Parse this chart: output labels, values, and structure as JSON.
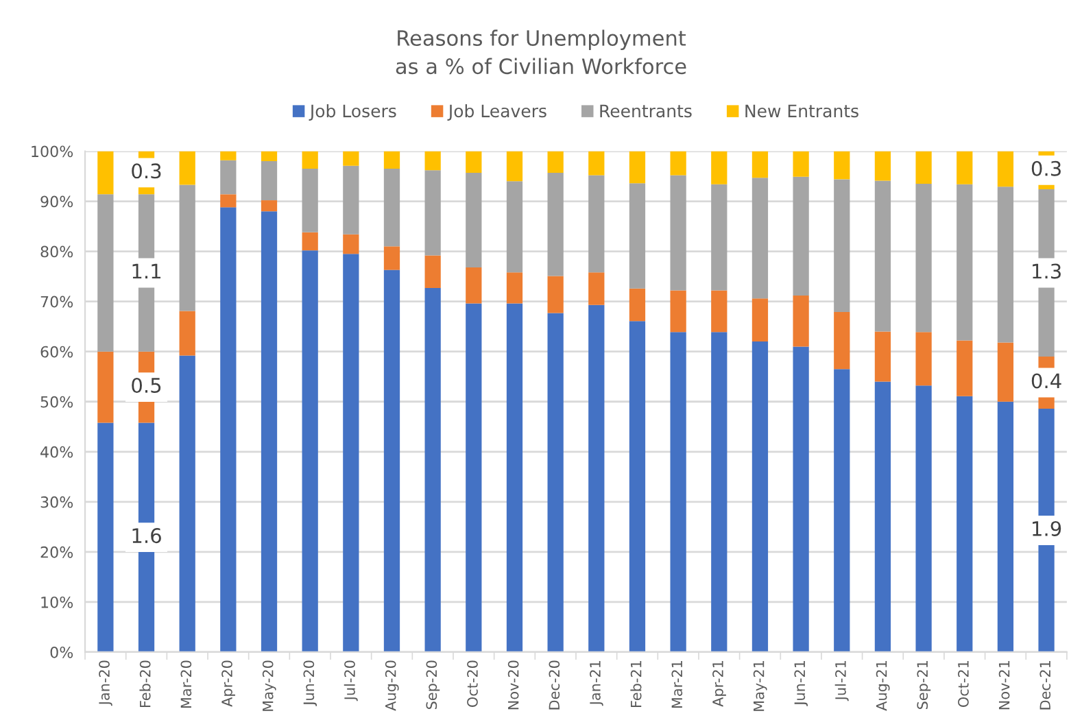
{
  "chart_data": {
    "type": "bar",
    "title": "Reasons for Unemployment\nas a % of Civilian Workforce",
    "stacked": true,
    "categories": [
      "Jan-20",
      "Feb-20",
      "Mar-20",
      "Apr-20",
      "May-20",
      "Jun-20",
      "Jul-20",
      "Aug-20",
      "Sep-20",
      "Oct-20",
      "Nov-20",
      "Dec-20",
      "Jan-21",
      "Feb-21",
      "Mar-21",
      "Apr-21",
      "May-21",
      "Jun-21",
      "Jul-21",
      "Aug-21",
      "Sep-21",
      "Oct-21",
      "Nov-21",
      "Dec-21"
    ],
    "series": [
      {
        "name": "Job Losers",
        "color": "#4472c4",
        "values": [
          45.8,
          45.8,
          59.2,
          88.8,
          88.0,
          80.2,
          79.5,
          76.3,
          72.7,
          69.6,
          69.6,
          67.7,
          69.3,
          66.1,
          63.9,
          63.9,
          62.0,
          61.0,
          56.5,
          54.0,
          53.2,
          51.1,
          50.0,
          48.6
        ]
      },
      {
        "name": "Job Leavers",
        "color": "#ed7d31",
        "values": [
          14.2,
          14.2,
          8.9,
          2.6,
          2.2,
          3.6,
          3.9,
          4.7,
          6.5,
          7.2,
          6.2,
          7.4,
          6.5,
          6.5,
          8.3,
          8.3,
          8.6,
          10.2,
          11.4,
          10.0,
          10.7,
          11.1,
          11.8,
          10.4
        ]
      },
      {
        "name": "Reentrants",
        "color": "#a5a5a5",
        "values": [
          31.4,
          31.4,
          25.2,
          6.8,
          7.8,
          12.7,
          13.7,
          15.5,
          17.0,
          18.9,
          18.2,
          20.6,
          19.4,
          21.0,
          23.0,
          21.2,
          24.1,
          23.7,
          26.5,
          30.1,
          29.6,
          31.2,
          31.1,
          33.4
        ]
      },
      {
        "name": "New Entrants",
        "color": "#ffc000",
        "values": [
          8.6,
          8.6,
          6.7,
          1.8,
          2.0,
          3.5,
          2.9,
          3.5,
          3.8,
          4.3,
          6.0,
          4.3,
          4.8,
          6.4,
          4.8,
          6.6,
          5.3,
          5.1,
          5.6,
          5.9,
          6.5,
          6.6,
          7.1,
          7.6
        ]
      }
    ],
    "annotations": [
      {
        "text": "1.6",
        "x": "Feb-20",
        "y": 22.9
      },
      {
        "text": "0.5",
        "x": "Feb-20",
        "y": 52.9
      },
      {
        "text": "1.1",
        "x": "Feb-20",
        "y": 75.7
      },
      {
        "text": "0.3",
        "x": "Feb-20",
        "y": 95.7
      },
      {
        "text": "1.9",
        "x": "Dec-21",
        "y": 24.3
      },
      {
        "text": "0.4",
        "x": "Dec-21",
        "y": 53.8
      },
      {
        "text": "1.3",
        "x": "Dec-21",
        "y": 75.7
      },
      {
        "text": "0.3",
        "x": "Dec-21",
        "y": 96.2
      }
    ],
    "ylim": [
      0,
      100
    ],
    "yticks": [
      {
        "value": 0,
        "label": "0%"
      },
      {
        "value": 10,
        "label": "10%"
      },
      {
        "value": 20,
        "label": "20%"
      },
      {
        "value": 30,
        "label": "30%"
      },
      {
        "value": 40,
        "label": "40%"
      },
      {
        "value": 50,
        "label": "50%"
      },
      {
        "value": 60,
        "label": "60%"
      },
      {
        "value": 70,
        "label": "70%"
      },
      {
        "value": 80,
        "label": "80%"
      },
      {
        "value": 90,
        "label": "90%"
      },
      {
        "value": 100,
        "label": "100%"
      }
    ],
    "grid": "y",
    "legend": "top"
  }
}
